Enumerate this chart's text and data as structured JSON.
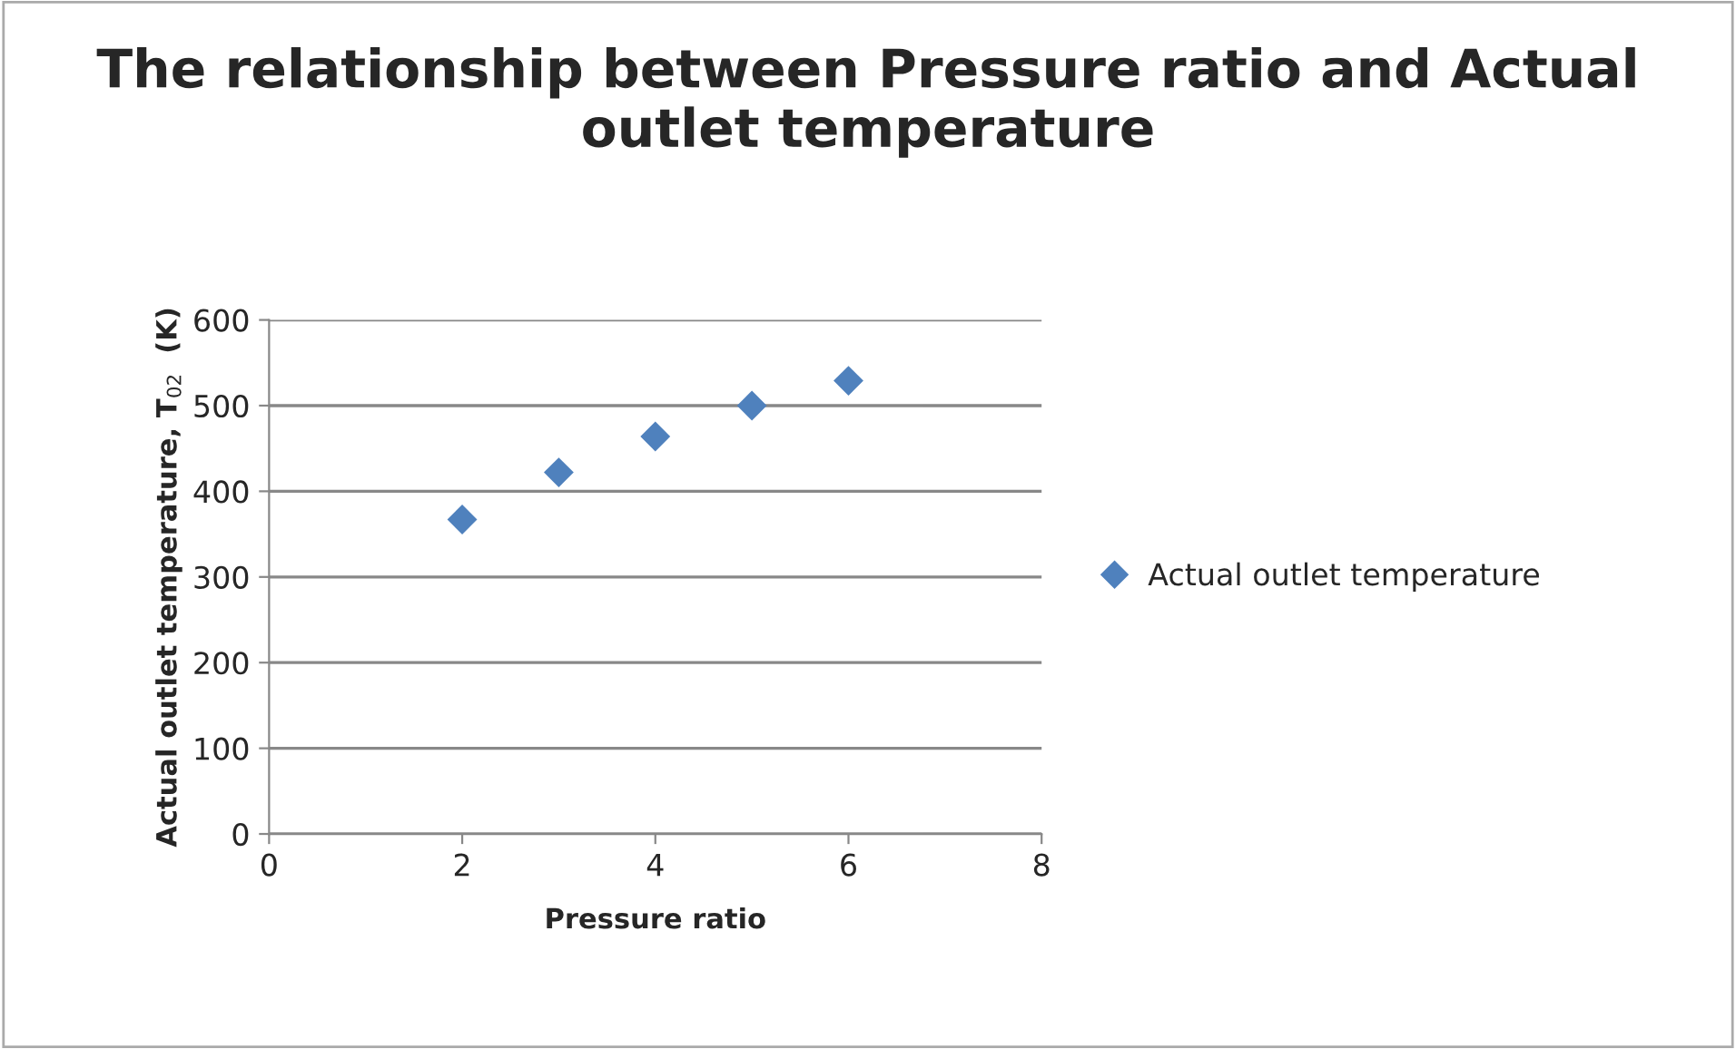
{
  "chart_data": {
    "type": "scatter",
    "title": "The relationship between Pressure ratio and Actual outlet temperature",
    "xlabel": "Pressure ratio",
    "ylabel": "Actual outlet temperature, T$_{02}$  (K)",
    "x": [
      2,
      3,
      4,
      5,
      6
    ],
    "series": [
      {
        "name": "Actual outlet temperature",
        "color": "#4f81bd",
        "values": [
          367,
          422,
          464,
          500,
          529
        ]
      }
    ],
    "xlim": [
      0,
      8
    ],
    "xticks": [
      0,
      2,
      4,
      6,
      8
    ],
    "ylim": [
      0,
      600
    ],
    "yticks": [
      0,
      100,
      200,
      300,
      400,
      500,
      600
    ],
    "grid": "y",
    "legend": "right",
    "marker": "diamond"
  }
}
